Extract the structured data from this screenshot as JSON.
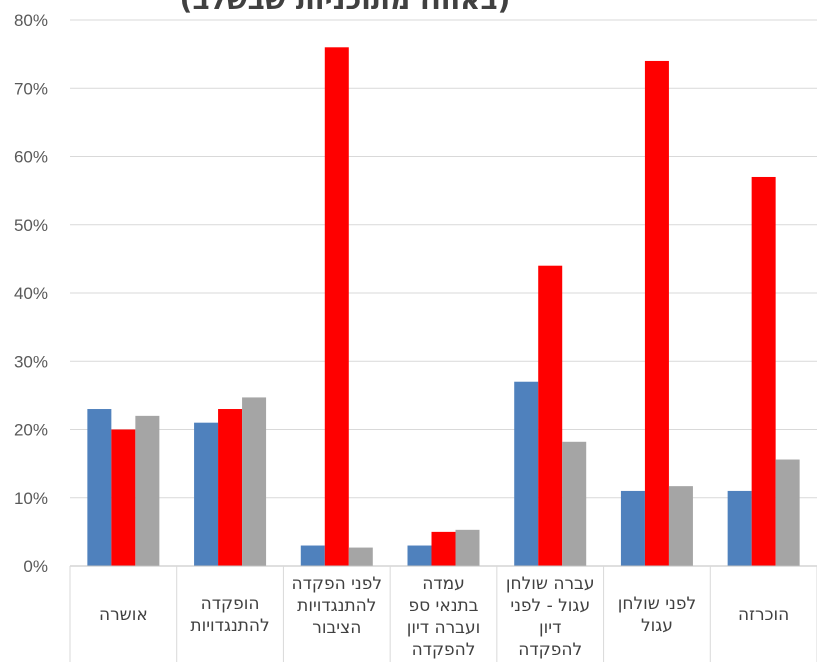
{
  "chart_data": {
    "type": "bar",
    "title": "(באחוז מתוכניות שבשלב)",
    "xlabel": "",
    "ylabel": "",
    "ylim": [
      0,
      80
    ],
    "yticks": [
      "0%",
      "10%",
      "20%",
      "30%",
      "40%",
      "50%",
      "60%",
      "70%",
      "80%"
    ],
    "grid": true,
    "categories": [
      [
        "אושרה"
      ],
      [
        "הופקדה",
        "להתנגדויות"
      ],
      [
        "לפני הפקדה",
        "להתנגדויות",
        "הציבור"
      ],
      [
        "עמדה",
        "בתנאי ספ",
        "ועברה דיון",
        "להפקדה"
      ],
      [
        "עברה שולחן",
        "עגול - לפני",
        "דיון",
        "להפקדה"
      ],
      [
        "לפני שולחן",
        "עגול"
      ],
      [
        "הוכרזה"
      ]
    ],
    "series": [
      {
        "color": "#4f81bd",
        "values": [
          23,
          21,
          3,
          3,
          27,
          11,
          11
        ]
      },
      {
        "color": "#ff0000",
        "values": [
          20,
          23,
          76,
          5,
          44,
          74,
          57
        ]
      },
      {
        "color": "#a5a5a5",
        "values": [
          22,
          24.7,
          2.7,
          5.3,
          18.2,
          11.7,
          15.6
        ]
      }
    ]
  }
}
